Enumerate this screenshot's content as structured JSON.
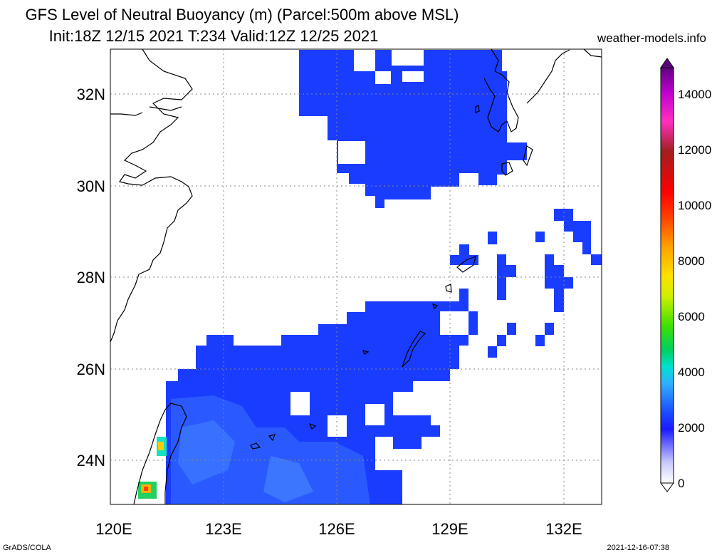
{
  "title": {
    "line1": "GFS Level of Neutral Buoyancy (m) (Parcel:500m above MSL)",
    "line2": "Init:18Z 12/15 2021 T:234 Valid:12Z 12/25 2021"
  },
  "site": "weather-models.info",
  "footer": {
    "left": "GrADS/COLA",
    "right": "2021-12-16-07:38"
  },
  "map": {
    "lon_range": [
      120,
      133
    ],
    "lat_range": [
      23,
      33
    ],
    "lon_ticks": [
      "120E",
      "123E",
      "126E",
      "129E",
      "132E"
    ],
    "lat_ticks": [
      "24N",
      "26N",
      "28N",
      "30N",
      "32N"
    ],
    "grid": "dotted",
    "colorbar": {
      "min": 0,
      "max": 15000,
      "tick_labels": [
        "0",
        "2000",
        "4000",
        "6000",
        "8000",
        "10000",
        "12000",
        "14000"
      ]
    },
    "colors": {
      "main_blue": "#1a3cff",
      "light_blue": "#3f7bff"
    }
  }
}
